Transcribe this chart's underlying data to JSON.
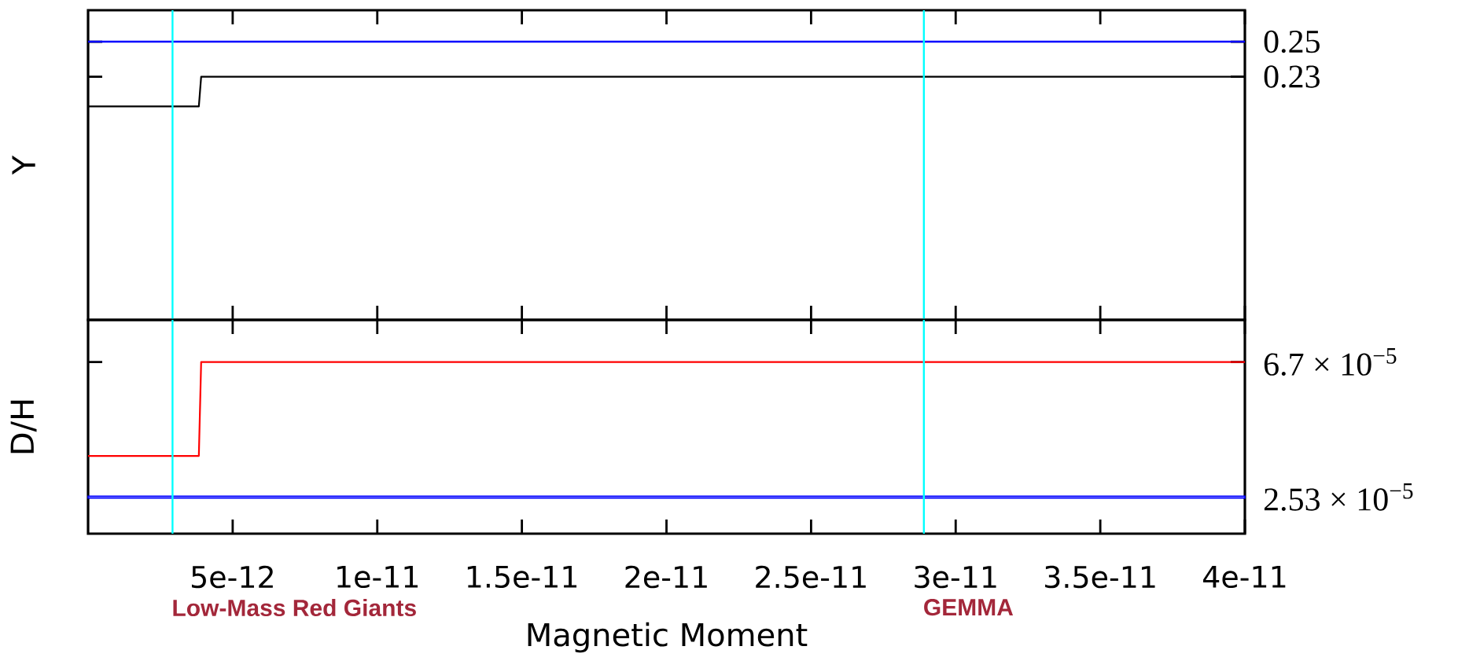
{
  "chart_data": [
    {
      "type": "line",
      "ylabel": "Y",
      "xlim": [
        0,
        4e-11
      ],
      "xticks": [
        5e-12,
        1e-11,
        1.5e-11,
        2e-11,
        2.5e-11,
        3e-11,
        3.5e-11,
        4e-11
      ],
      "ylim": [
        0.091,
        0.268
      ],
      "yticks": [
        {
          "value": 0.23,
          "label": "0.23"
        },
        {
          "value": 0.25,
          "label": "0.25"
        }
      ],
      "tick_labels": "y",
      "series": [
        {
          "color": "#000000",
          "x": [
            0,
            3.83e-12,
            3.91e-12,
            4e-11
          ],
          "values": [
            0.213,
            0.213,
            0.23,
            0.23
          ]
        }
      ],
      "ref_lines": [
        {
          "axis": "y",
          "value": 0.25,
          "color": "#0000ff"
        },
        {
          "axis": "x",
          "value": 2.92e-12,
          "color": "#00ffff"
        },
        {
          "axis": "x",
          "value": 2.89e-11,
          "color": "#00ffff"
        }
      ]
    },
    {
      "type": "line",
      "ylabel": "D/H",
      "xlabel": "Magnetic Moment",
      "xlim": [
        0,
        4e-11
      ],
      "xticks": [
        5e-12,
        1e-11,
        1.5e-11,
        2e-11,
        2.5e-11,
        3e-11,
        3.5e-11,
        4e-11
      ],
      "ylim": [
        1.4e-05,
        8e-05
      ],
      "yticks": [
        {
          "value": 2.53e-05,
          "label": "2.53 × 10$^{−5}$"
        },
        {
          "value": 6.7e-05,
          "label": "6.7 × 10$^{−5}$"
        }
      ],
      "series": [
        {
          "color": "#ff0000",
          "x": [
            0,
            3.83e-12,
            3.91e-12,
            4e-11
          ],
          "values": [
            3.8e-05,
            3.8e-05,
            6.7e-05,
            6.7e-05
          ]
        }
      ],
      "ref_lines": [
        {
          "axis": "x",
          "value": 2.92e-12,
          "label": "Low-Mass Red Giants",
          "color": "#00ffff"
        },
        {
          "axis": "x",
          "value": 2.89e-11,
          "label": "GEMMA",
          "color": "#00ffff"
        }
      ],
      "bands": [
        {
          "axis": "y",
          "from": 2.5e-05,
          "to": 2.56e-05,
          "color": "#0000ff"
        }
      ]
    }
  ]
}
